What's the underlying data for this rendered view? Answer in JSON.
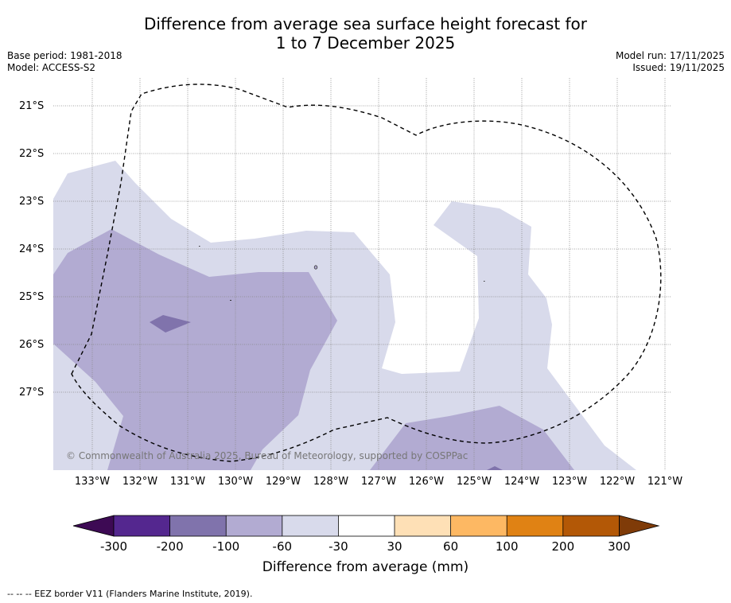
{
  "title_line1": "Difference from average sea surface height forecast for",
  "title_line2": "1 to 7 December 2025",
  "meta_left": {
    "base_period": "Base period: 1981-2018",
    "model": "Model: ACCESS-S2"
  },
  "meta_right": {
    "model_run": "Model run: 17/11/2025",
    "issued": "Issued: 19/11/2025"
  },
  "map": {
    "lat_labels": [
      "21°S",
      "22°S",
      "23°S",
      "24°S",
      "25°S",
      "26°S",
      "27°S"
    ],
    "lon_labels": [
      "133°W",
      "132°W",
      "131°W",
      "130°W",
      "129°W",
      "128°W",
      "127°W",
      "126°W",
      "125°W",
      "124°W",
      "123°W",
      "122°W",
      "121°W"
    ],
    "copyright": "© Commonwealth of Australia 2025, Bureau of Meteorology, supported by COSPPac"
  },
  "legend": {
    "title": "Difference from average (mm)",
    "ticks": [
      "-300",
      "-200",
      "-100",
      "-60",
      "-30",
      "30",
      "60",
      "100",
      "200",
      "300"
    ],
    "colors": {
      "below_min": "#3d0a54",
      "c1": "#54278f",
      "c2": "#8073ac",
      "c3": "#b2abd2",
      "c4": "#d8daeb",
      "c5": "#ffffff",
      "c6": "#fee0b6",
      "c7": "#fdb863",
      "c8": "#e08214",
      "c9": "#b35806",
      "above_max": "#7f3b08"
    }
  },
  "footer": "-- -- -- EEZ border V11 (Flanders Marine Institute, 2019)."
}
